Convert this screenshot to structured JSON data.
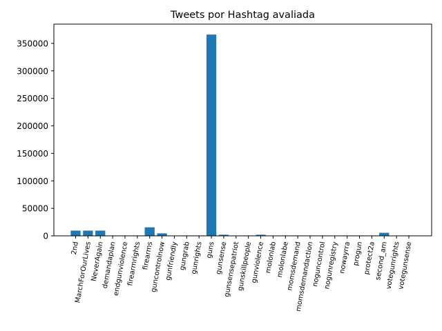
{
  "chart_data": {
    "type": "bar",
    "title": "Tweets por Hashtag avaliada",
    "xlabel": "",
    "ylabel": "",
    "ylim": [
      0,
      385000
    ],
    "yticks": [
      0,
      50000,
      100000,
      150000,
      200000,
      250000,
      300000,
      350000
    ],
    "ytick_labels": [
      "0",
      "50000",
      "100000",
      "150000",
      "200000",
      "250000",
      "300000",
      "350000"
    ],
    "bar_color": "#1f77b4",
    "grid": false,
    "categories": [
      "2nd",
      "MarchForOurLives",
      "NeverAgain",
      "demandaplan",
      "endgunviolence",
      "firearmrights",
      "firearms",
      "guncontrolnow",
      "gunfriendly",
      "gungrab",
      "gunrights",
      "guns",
      "gunsense",
      "gunsensepatriot",
      "gunskillpeople",
      "gunviolence",
      "molonlab",
      "molonlabe",
      "momsdemand",
      "momsdemandaction",
      "noguncontrol",
      "nogunregistry",
      "nowayrra",
      "progun",
      "protect2a",
      "second_am",
      "votegunrights",
      "votegunsense"
    ],
    "values": [
      9500,
      9500,
      9500,
      700,
      700,
      700,
      15500,
      4500,
      0,
      700,
      700,
      366000,
      2000,
      0,
      700,
      2000,
      0,
      700,
      700,
      700,
      700,
      0,
      700,
      700,
      700,
      5500,
      0,
      700
    ]
  }
}
